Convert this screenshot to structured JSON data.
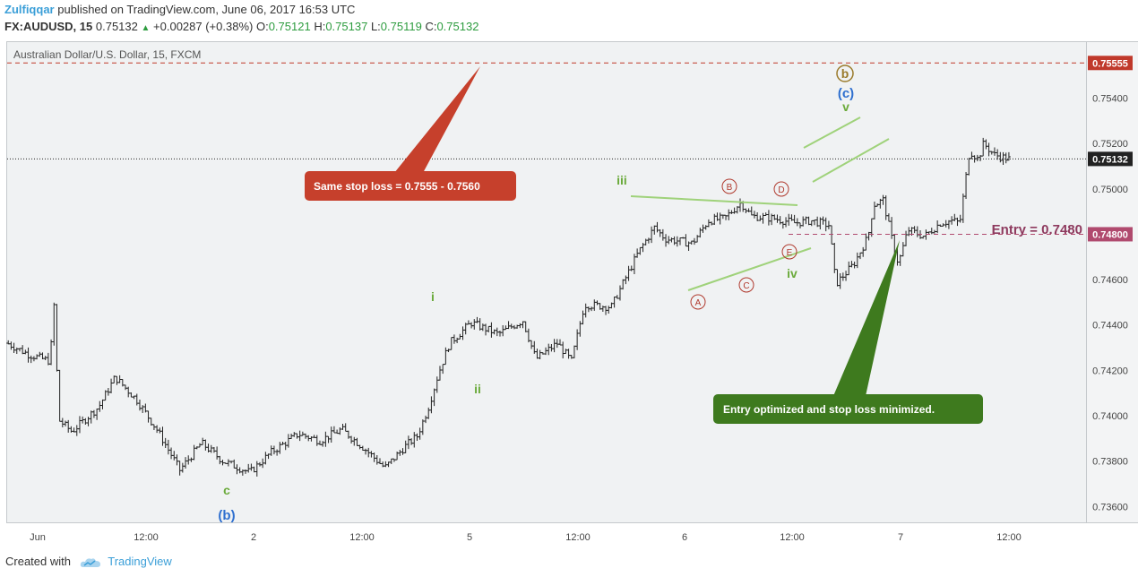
{
  "header": {
    "author": "Zulfiqqar",
    "published": "published on TradingView.com, June 06, 2017 16:53 UTC",
    "symbol": "FX:AUDUSD, 15",
    "last": "0.75132",
    "change": "+0.00287 (+0.38%)",
    "open_label": "O:",
    "open": "0.75121",
    "high_label": "H:",
    "high": "0.75137",
    "low_label": "L:",
    "low": "0.75119",
    "close_label": "C:",
    "close": "0.75132"
  },
  "chart_title": "Australian Dollar/U.S. Dollar, 15, FXCM",
  "price_axis": {
    "ticks": [
      "0.75400",
      "0.75200",
      "0.75000",
      "0.74600",
      "0.74400",
      "0.74200",
      "0.74000",
      "0.73800",
      "0.73600"
    ],
    "tick_values": [
      0.754,
      0.752,
      0.75,
      0.746,
      0.744,
      0.742,
      0.74,
      0.738,
      0.736
    ],
    "ylim": [
      0.7353,
      0.75647
    ],
    "stop_tag": "0.75555",
    "last_tag": "0.75132",
    "entry_tag": "0.74800",
    "stop_value": 0.75555,
    "last_value": 0.75132,
    "entry_value": 0.748
  },
  "time_axis": {
    "labels": [
      "Jun",
      "12:00",
      "2",
      "12:00",
      "5",
      "12:00",
      "6",
      "12:00",
      "7",
      "12:00"
    ]
  },
  "annotations": {
    "stop_callout": "Same stop loss = 0.7555 - 0.7560",
    "entry_label": "Entry = 0.7480",
    "entry_callout": "Entry optimized and stop loss minimized."
  },
  "wave_labels": {
    "b_paren": "(b)",
    "c": "c",
    "i": "i",
    "ii": "ii",
    "iii": "iii",
    "iv": "iv",
    "v": "v",
    "c_paren": "(c)",
    "b_circle": "b",
    "A": "A",
    "B": "B",
    "C": "C",
    "D": "D",
    "E": "E"
  },
  "colors": {
    "candle": "#222222",
    "wave_green": "#6aaa3a",
    "wave_blue": "#2e6fcf",
    "circle_red": "#b03a2e",
    "stop_red": "#c0392b",
    "entry_maroon": "#8e3a5e",
    "callout_green": "#3e7a1e",
    "channel_green": "#9fd27a",
    "brand_blue": "#3b9fd8"
  },
  "footer": {
    "created_with": "Created with",
    "brand": "TradingView"
  },
  "chart_data": {
    "type": "candlestick",
    "title": "Australian Dollar/U.S. Dollar, 15, FXCM",
    "ylim": [
      0.7353,
      0.75647
    ],
    "price_path": [
      [
        0.0,
        0.7432
      ],
      [
        0.02,
        0.7427
      ],
      [
        0.04,
        0.7424
      ],
      [
        0.043,
        0.7453
      ],
      [
        0.048,
        0.7398
      ],
      [
        0.06,
        0.7393
      ],
      [
        0.085,
        0.7404
      ],
      [
        0.1,
        0.7417
      ],
      [
        0.12,
        0.7407
      ],
      [
        0.14,
        0.7393
      ],
      [
        0.16,
        0.7376
      ],
      [
        0.18,
        0.7388
      ],
      [
        0.2,
        0.738
      ],
      [
        0.225,
        0.7375
      ],
      [
        0.245,
        0.7384
      ],
      [
        0.27,
        0.7392
      ],
      [
        0.29,
        0.7389
      ],
      [
        0.31,
        0.7394
      ],
      [
        0.33,
        0.7386
      ],
      [
        0.35,
        0.7377
      ],
      [
        0.37,
        0.7387
      ],
      [
        0.38,
        0.7391
      ],
      [
        0.39,
        0.7403
      ],
      [
        0.4,
        0.7419
      ],
      [
        0.41,
        0.7432
      ],
      [
        0.43,
        0.7441
      ],
      [
        0.455,
        0.7436
      ],
      [
        0.478,
        0.7442
      ],
      [
        0.49,
        0.7425
      ],
      [
        0.51,
        0.7432
      ],
      [
        0.523,
        0.7424
      ],
      [
        0.535,
        0.7449
      ],
      [
        0.56,
        0.7448
      ],
      [
        0.585,
        0.7472
      ],
      [
        0.6,
        0.7483
      ],
      [
        0.61,
        0.7478
      ],
      [
        0.635,
        0.7476
      ],
      [
        0.65,
        0.7486
      ],
      [
        0.665,
        0.7487
      ],
      [
        0.68,
        0.7494
      ],
      [
        0.69,
        0.7488
      ],
      [
        0.71,
        0.7487
      ],
      [
        0.73,
        0.7485
      ],
      [
        0.745,
        0.7486
      ],
      [
        0.762,
        0.7484
      ],
      [
        0.768,
        0.7458
      ],
      [
        0.785,
        0.7467
      ],
      [
        0.798,
        0.7479
      ],
      [
        0.803,
        0.7493
      ],
      [
        0.812,
        0.7495
      ],
      [
        0.82,
        0.7478
      ],
      [
        0.826,
        0.7467
      ],
      [
        0.835,
        0.7482
      ],
      [
        0.85,
        0.7479
      ],
      [
        0.865,
        0.7485
      ],
      [
        0.876,
        0.7486
      ],
      [
        0.883,
        0.7485
      ],
      [
        0.892,
        0.7517
      ],
      [
        0.9,
        0.7513
      ],
      [
        0.905,
        0.752
      ],
      [
        0.915,
        0.7515
      ],
      [
        0.93,
        0.7513
      ]
    ],
    "horizontal_levels": [
      {
        "name": "stop",
        "value": 0.75555
      },
      {
        "name": "last",
        "value": 0.75132
      },
      {
        "name": "entry",
        "value": 0.748
      }
    ]
  }
}
